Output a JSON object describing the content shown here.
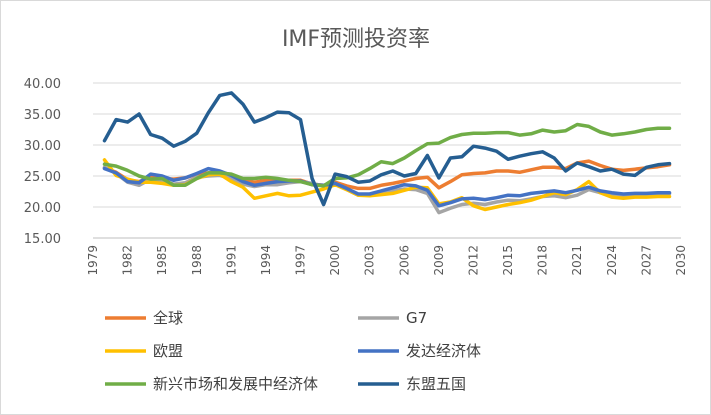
{
  "chart_data": {
    "type": "line",
    "title": "IMF预测投资率",
    "xlabel": "",
    "ylabel": "",
    "ylim": [
      15,
      40
    ],
    "yticks": [
      "40.00",
      "35.00",
      "30.00",
      "25.00",
      "20.00",
      "15.00"
    ],
    "ytick_values": [
      40,
      35,
      30,
      25,
      20,
      15
    ],
    "xtick_labels": [
      "1979",
      "1982",
      "1985",
      "1988",
      "1991",
      "1994",
      "1997",
      "2000",
      "2003",
      "2006",
      "2009",
      "2012",
      "2015",
      "2018",
      "2021",
      "2024",
      "2027",
      "2030"
    ],
    "x": [
      1980,
      1981,
      1982,
      1983,
      1984,
      1985,
      1986,
      1987,
      1988,
      1989,
      1990,
      1991,
      1992,
      1993,
      1994,
      1995,
      1996,
      1997,
      1998,
      1999,
      2000,
      2001,
      2002,
      2003,
      2004,
      2005,
      2006,
      2007,
      2008,
      2009,
      2010,
      2011,
      2012,
      2013,
      2014,
      2015,
      2016,
      2017,
      2018,
      2019,
      2020,
      2021,
      2022,
      2023,
      2024,
      2025,
      2026,
      2027,
      2028,
      2029
    ],
    "grid": true,
    "legend_position": "bottom",
    "series": [
      {
        "name": "全球",
        "color": "#ED7D31",
        "values": [
          26.3,
          25.6,
          24.4,
          24.1,
          24.8,
          24.6,
          24.5,
          24.7,
          25.3,
          25.5,
          25.6,
          25.1,
          24.4,
          24.0,
          24.3,
          24.3,
          24.3,
          24.3,
          23.7,
          23.5,
          24.0,
          23.4,
          23.0,
          23.0,
          23.5,
          23.8,
          24.2,
          24.6,
          24.8,
          23.1,
          24.1,
          25.2,
          25.4,
          25.5,
          25.8,
          25.8,
          25.6,
          26.0,
          26.4,
          26.4,
          26.2,
          27.1,
          27.4,
          26.7,
          26.1,
          25.9,
          26.1,
          26.3,
          26.5,
          26.8
        ]
      },
      {
        "name": "G7",
        "color": "#A5A5A5",
        "values": [
          26.4,
          25.4,
          24.0,
          23.5,
          24.5,
          24.3,
          23.7,
          23.9,
          24.8,
          25.0,
          25.1,
          24.6,
          23.7,
          23.3,
          23.6,
          23.6,
          23.9,
          24.1,
          23.8,
          23.4,
          23.7,
          22.8,
          21.9,
          21.9,
          22.3,
          22.6,
          22.9,
          22.8,
          22.2,
          19.1,
          19.8,
          20.4,
          20.6,
          20.4,
          20.8,
          21.1,
          21.0,
          21.3,
          21.7,
          21.8,
          21.5,
          21.9,
          22.8,
          22.3,
          21.9,
          21.8,
          21.9,
          22.0,
          22.1,
          22.2
        ]
      },
      {
        "name": "欧盟",
        "color": "#FFC000",
        "values": [
          27.6,
          25.1,
          24.5,
          24.0,
          24.0,
          23.8,
          23.5,
          23.6,
          24.6,
          25.2,
          25.3,
          24.1,
          23.2,
          21.4,
          21.8,
          22.2,
          21.8,
          21.9,
          22.4,
          22.9,
          23.6,
          22.8,
          21.9,
          21.8,
          22.0,
          22.2,
          22.7,
          23.2,
          23.1,
          20.5,
          20.8,
          21.5,
          20.2,
          19.6,
          20.0,
          20.4,
          20.7,
          21.1,
          21.7,
          22.3,
          22.0,
          22.8,
          24.1,
          22.3,
          21.6,
          21.4,
          21.6,
          21.6,
          21.7,
          21.7
        ]
      },
      {
        "name": "发达经济体",
        "color": "#4472C4",
        "values": [
          26.2,
          25.5,
          24.1,
          23.9,
          25.3,
          25.0,
          24.3,
          24.7,
          25.4,
          26.2,
          25.8,
          25.1,
          24.1,
          23.5,
          23.8,
          24.1,
          24.2,
          24.2,
          23.6,
          23.5,
          23.8,
          23.0,
          22.1,
          22.1,
          22.6,
          23.1,
          23.6,
          23.4,
          22.7,
          20.2,
          20.7,
          21.3,
          21.4,
          21.2,
          21.5,
          21.9,
          21.8,
          22.2,
          22.4,
          22.6,
          22.3,
          22.7,
          23.2,
          22.6,
          22.3,
          22.1,
          22.2,
          22.2,
          22.3,
          22.3
        ]
      },
      {
        "name": "新兴市场和发展中经济体",
        "color": "#70AD47",
        "values": [
          26.9,
          26.6,
          25.9,
          25.0,
          24.5,
          24.6,
          23.5,
          23.5,
          24.6,
          25.5,
          25.5,
          25.3,
          24.6,
          24.6,
          24.8,
          24.6,
          24.3,
          24.1,
          23.6,
          23.4,
          24.6,
          24.7,
          25.2,
          26.2,
          27.3,
          27.0,
          27.9,
          29.1,
          30.2,
          30.3,
          31.2,
          31.7,
          31.9,
          31.9,
          32.0,
          32.0,
          31.6,
          31.8,
          32.4,
          32.1,
          32.3,
          33.3,
          33.0,
          32.1,
          31.6,
          31.8,
          32.1,
          32.5,
          32.7,
          32.7
        ]
      },
      {
        "name": "东盟五国",
        "color": "#255E91",
        "values": [
          30.7,
          34.1,
          33.7,
          35.0,
          31.7,
          31.1,
          29.8,
          30.6,
          31.9,
          35.2,
          38.0,
          38.4,
          36.6,
          33.7,
          34.4,
          35.3,
          35.2,
          34.1,
          24.6,
          20.4,
          25.3,
          24.9,
          24.0,
          24.2,
          25.2,
          25.8,
          25.0,
          25.4,
          28.3,
          24.7,
          27.9,
          28.1,
          29.8,
          29.5,
          29.0,
          27.7,
          28.2,
          28.6,
          28.9,
          27.9,
          25.8,
          27.1,
          26.5,
          25.8,
          26.1,
          25.3,
          25.1,
          26.4,
          26.8,
          27.0
        ]
      }
    ]
  }
}
